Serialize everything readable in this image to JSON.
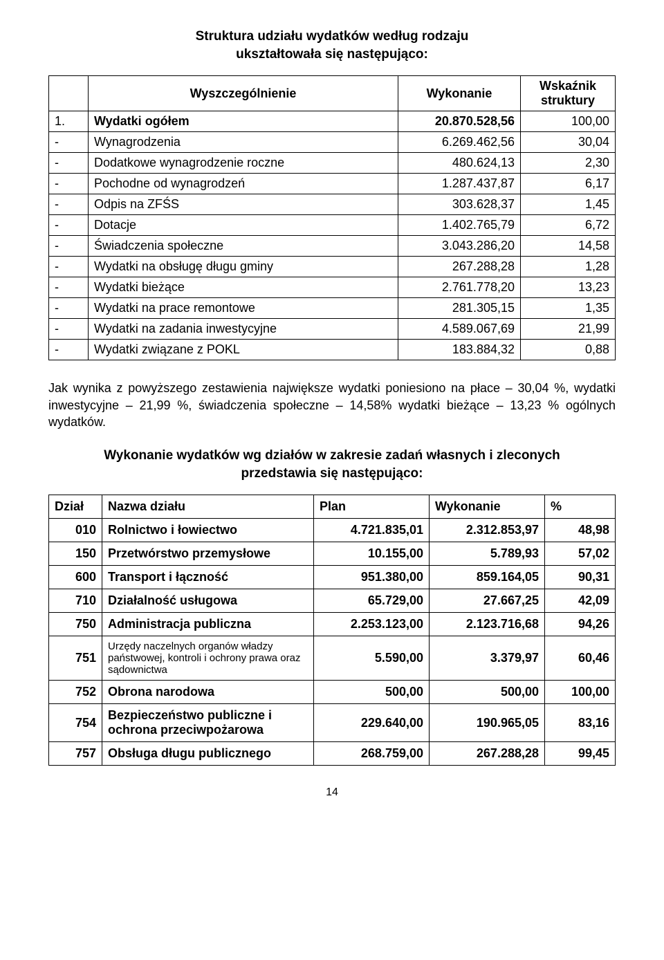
{
  "title_line1": "Struktura udziału wydatków według rodzaju",
  "title_line2": "ukształtowała się następująco:",
  "table1": {
    "headers": {
      "col2": "Wyszczególnienie",
      "col3": "Wykonanie",
      "col4": "Wskaźnik struktury"
    },
    "rows": [
      {
        "c1": "1.",
        "c2": "Wydatki ogółem",
        "c3": "20.870.528,56",
        "c4": "100,00",
        "bold": true
      },
      {
        "c1": "-",
        "c2": "Wynagrodzenia",
        "c3": "6.269.462,56",
        "c4": "30,04"
      },
      {
        "c1": "-",
        "c2": "Dodatkowe wynagrodzenie roczne",
        "c3": "480.624,13",
        "c4": "2,30"
      },
      {
        "c1": "-",
        "c2": "Pochodne od wynagrodzeń",
        "c3": "1.287.437,87",
        "c4": "6,17"
      },
      {
        "c1": "-",
        "c2": "Odpis na ZFŚS",
        "c3": "303.628,37",
        "c4": "1,45"
      },
      {
        "c1": "-",
        "c2": "Dotacje",
        "c3": "1.402.765,79",
        "c4": "6,72"
      },
      {
        "c1": "-",
        "c2": "Świadczenia społeczne",
        "c3": "3.043.286,20",
        "c4": "14,58"
      },
      {
        "c1": "-",
        "c2": "Wydatki na obsługę długu gminy",
        "c3": "267.288,28",
        "c4": "1,28"
      },
      {
        "c1": "-",
        "c2": "Wydatki bieżące",
        "c3": "2.761.778,20",
        "c4": "13,23"
      },
      {
        "c1": "-",
        "c2": "Wydatki na prace  remontowe",
        "c3": "281.305,15",
        "c4": "1,35"
      },
      {
        "c1": "-",
        "c2": "Wydatki na zadania inwestycyjne",
        "c3": "4.589.067,69",
        "c4": "21,99"
      },
      {
        "c1": "-",
        "c2": "Wydatki związane z POKL",
        "c3": "183.884,32",
        "c4": "0,88"
      }
    ]
  },
  "paragraph": "Jak wynika z powyższego zestawienia największe wydatki poniesiono na  płace – 30,04 %,  wydatki inwestycyjne – 21,99 %, świadczenia społeczne – 14,58%  wydatki bieżące – 13,23 % ogólnych wydatków.",
  "subtitle_line1": "Wykonanie wydatków wg działów  w zakresie zadań własnych i zleconych",
  "subtitle_line2": "przedstawia się następująco:",
  "table2": {
    "headers": {
      "d1": "Dział",
      "d2": "Nazwa działu",
      "d3": "Plan",
      "d4": "Wykonanie",
      "d5": "%"
    },
    "rows": [
      {
        "d1": "010",
        "d2": "Rolnictwo i łowiectwo",
        "d3": "4.721.835,01",
        "d4": "2.312.853,97",
        "d5": "48,98"
      },
      {
        "d1": "150",
        "d2": "Przetwórstwo przemysłowe",
        "d3": "10.155,00",
        "d4": "5.789,93",
        "d5": "57,02"
      },
      {
        "d1": "600",
        "d2": "Transport i łączność",
        "d3": "951.380,00",
        "d4": "859.164,05",
        "d5": "90,31"
      },
      {
        "d1": "710",
        "d2": "Działalność usługowa",
        "d3": "65.729,00",
        "d4": "27.667,25",
        "d5": "42,09"
      },
      {
        "d1": "750",
        "d2": "Administracja publiczna",
        "d3": "2.253.123,00",
        "d4": "2.123.716,68",
        "d5": "94,26"
      },
      {
        "d1": "751",
        "d2": "Urzędy naczelnych organów władzy państwowej, kontroli  i ochrony prawa oraz sądownictwa",
        "d3": "5.590,00",
        "d4": "3.379,97",
        "d5": "60,46",
        "small": true
      },
      {
        "d1": "752",
        "d2": "Obrona narodowa",
        "d3": "500,00",
        "d4": "500,00",
        "d5": "100,00"
      },
      {
        "d1": "754",
        "d2": "Bezpieczeństwo publiczne i ochrona przeciwpożarowa",
        "d3": "229.640,00",
        "d4": "190.965,05",
        "d5": "83,16"
      },
      {
        "d1": "757",
        "d2": "Obsługa długu publicznego",
        "d3": "268.759,00",
        "d4": "267.288,28",
        "d5": "99,45"
      }
    ]
  },
  "page_number": "14"
}
